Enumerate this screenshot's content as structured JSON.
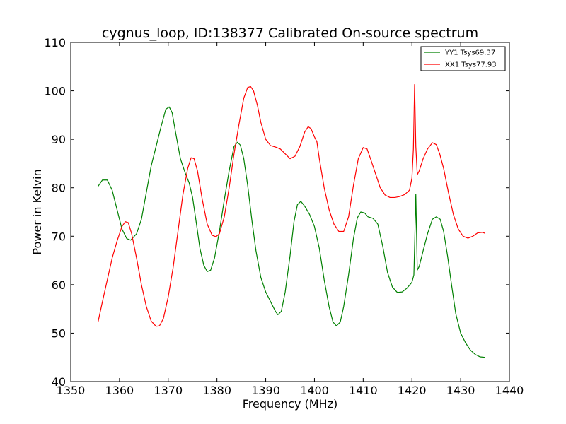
{
  "chart_data": {
    "type": "line",
    "title": "cygnus_loop, ID:138377 Calibrated On-source spectrum",
    "xlabel": "Frequency (MHz)",
    "ylabel": "Power in Kelvin",
    "xlim": [
      1350,
      1440
    ],
    "ylim": [
      40,
      110
    ],
    "xticks": [
      1350,
      1360,
      1370,
      1380,
      1390,
      1400,
      1410,
      1420,
      1430,
      1440
    ],
    "yticks": [
      40,
      50,
      60,
      70,
      80,
      90,
      100,
      110
    ],
    "grid": false,
    "legend_position": "top-right",
    "series": [
      {
        "name": "YY1 Tsys69.37",
        "color": "#008000",
        "x": [
          1355.6,
          1356.5,
          1357.5,
          1358.5,
          1359.5,
          1360.5,
          1361.5,
          1362.3,
          1363.5,
          1364.5,
          1365.5,
          1366.5,
          1367.5,
          1368.5,
          1369.5,
          1370.2,
          1370.8,
          1371.5,
          1372.5,
          1373.5,
          1374.3,
          1375.0,
          1375.8,
          1376.5,
          1377.3,
          1378.0,
          1378.7,
          1379.5,
          1380.5,
          1381.5,
          1382.5,
          1383.5,
          1384.2,
          1384.8,
          1385.5,
          1386.3,
          1387.2,
          1388.0,
          1389.0,
          1390.0,
          1391.0,
          1392.0,
          1392.5,
          1393.2,
          1394.0,
          1395.0,
          1395.8,
          1396.5,
          1397.2,
          1398.0,
          1399.0,
          1400.0,
          1401.0,
          1402.0,
          1403.0,
          1403.8,
          1404.5,
          1405.3,
          1406.0,
          1407.0,
          1408.0,
          1408.8,
          1409.5,
          1410.3,
          1411.0,
          1412.0,
          1413.0,
          1414.0,
          1415.0,
          1416.0,
          1417.0,
          1418.0,
          1419.0,
          1420.0,
          1420.4,
          1420.6,
          1420.8,
          1421.1,
          1421.5,
          1422.3,
          1423.2,
          1424.2,
          1425.0,
          1425.8,
          1426.5,
          1427.3,
          1428.2,
          1429.0,
          1430.0,
          1431.0,
          1432.0,
          1433.0,
          1434.0,
          1435.0
        ],
        "values": [
          80.3,
          81.6,
          81.6,
          79.5,
          75.5,
          71.5,
          69.5,
          69.2,
          70.5,
          73.5,
          79.0,
          84.5,
          88.5,
          92.5,
          96.2,
          96.7,
          95.5,
          91.5,
          86.0,
          83.0,
          81.0,
          78.0,
          72.5,
          67.5,
          64.0,
          62.7,
          63.0,
          65.5,
          71.0,
          77.5,
          83.5,
          88.5,
          89.4,
          88.8,
          86.0,
          80.5,
          73.0,
          67.0,
          61.5,
          58.5,
          56.5,
          54.5,
          53.8,
          54.5,
          58.5,
          66.0,
          73.0,
          76.5,
          77.2,
          76.2,
          74.5,
          72.0,
          67.5,
          61.0,
          55.5,
          52.3,
          51.5,
          52.3,
          55.5,
          62.0,
          69.5,
          73.8,
          75.0,
          74.8,
          74.0,
          73.7,
          72.5,
          68.0,
          62.5,
          59.5,
          58.4,
          58.5,
          59.3,
          60.5,
          62.0,
          70.0,
          78.7,
          63.0,
          63.8,
          67.0,
          70.5,
          73.5,
          74.0,
          73.5,
          71.0,
          66.0,
          59.5,
          54.0,
          50.0,
          48.0,
          46.5,
          45.6,
          45.1,
          45.0
        ]
      },
      {
        "name": "XX1 Tsys77.93",
        "color": "#ff0000",
        "x": [
          1355.6,
          1356.5,
          1357.5,
          1358.5,
          1359.5,
          1360.5,
          1361.2,
          1361.8,
          1362.5,
          1363.5,
          1364.5,
          1365.5,
          1366.5,
          1367.5,
          1368.2,
          1369.0,
          1370.0,
          1371.0,
          1372.0,
          1373.0,
          1374.0,
          1374.7,
          1375.3,
          1376.0,
          1377.0,
          1378.0,
          1379.0,
          1379.8,
          1380.5,
          1381.5,
          1382.5,
          1383.5,
          1384.5,
          1385.5,
          1386.3,
          1386.9,
          1387.5,
          1388.3,
          1389.0,
          1390.0,
          1391.0,
          1392.0,
          1393.0,
          1394.0,
          1395.0,
          1396.0,
          1397.0,
          1398.0,
          1398.7,
          1399.3,
          1400.0,
          1400.5,
          1401.0,
          1402.0,
          1403.0,
          1404.0,
          1405.0,
          1406.0,
          1407.0,
          1408.0,
          1409.0,
          1410.0,
          1410.8,
          1411.5,
          1412.5,
          1413.5,
          1414.5,
          1415.5,
          1416.5,
          1417.5,
          1418.5,
          1419.5,
          1420.0,
          1420.3,
          1420.55,
          1420.8,
          1421.1,
          1421.5,
          1422.3,
          1423.2,
          1424.2,
          1425.0,
          1425.7,
          1426.5,
          1427.5,
          1428.5,
          1429.5,
          1430.5,
          1431.5,
          1432.5,
          1433.5,
          1434.5,
          1435.0
        ],
        "values": [
          52.3,
          56.5,
          61.0,
          65.5,
          69.0,
          72.0,
          73.0,
          72.8,
          70.5,
          65.5,
          60.0,
          55.5,
          52.5,
          51.4,
          51.5,
          53.0,
          57.5,
          63.5,
          71.0,
          78.5,
          84.0,
          86.2,
          86.0,
          83.5,
          77.5,
          72.5,
          70.2,
          69.9,
          70.5,
          74.0,
          80.0,
          87.0,
          93.0,
          98.5,
          100.7,
          100.9,
          100.0,
          97.0,
          93.5,
          90.0,
          88.7,
          88.4,
          88.0,
          87.0,
          86.0,
          86.5,
          88.5,
          91.5,
          92.6,
          92.2,
          90.5,
          89.5,
          86.0,
          80.0,
          75.5,
          72.5,
          71.0,
          71.0,
          74.0,
          80.5,
          86.0,
          88.3,
          88.0,
          86.0,
          83.0,
          80.0,
          78.5,
          78.0,
          78.0,
          78.2,
          78.6,
          79.5,
          82.0,
          88.0,
          101.3,
          88.5,
          82.7,
          83.5,
          86.0,
          88.0,
          89.3,
          88.9,
          87.0,
          84.0,
          79.0,
          74.5,
          71.5,
          70.0,
          69.6,
          70.0,
          70.7,
          70.8,
          70.6
        ]
      }
    ]
  }
}
